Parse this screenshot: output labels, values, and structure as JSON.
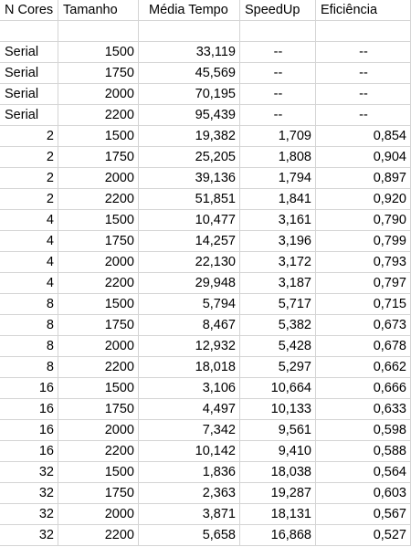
{
  "headers": [
    "N Cores",
    "Tamanho",
    "Média Tempo",
    "SpeedUp",
    "Eficiência"
  ],
  "rows": [
    [
      "Serial",
      "1500",
      "33,119",
      "--",
      "--"
    ],
    [
      "Serial",
      "1750",
      "45,569",
      "--",
      "--"
    ],
    [
      "Serial",
      "2000",
      "70,195",
      "--",
      "--"
    ],
    [
      "Serial",
      "2200",
      "95,439",
      "--",
      "--"
    ],
    [
      "2",
      "1500",
      "19,382",
      "1,709",
      "0,854"
    ],
    [
      "2",
      "1750",
      "25,205",
      "1,808",
      "0,904"
    ],
    [
      "2",
      "2000",
      "39,136",
      "1,794",
      "0,897"
    ],
    [
      "2",
      "2200",
      "51,851",
      "1,841",
      "0,920"
    ],
    [
      "4",
      "1500",
      "10,477",
      "3,161",
      "0,790"
    ],
    [
      "4",
      "1750",
      "14,257",
      "3,196",
      "0,799"
    ],
    [
      "4",
      "2000",
      "22,130",
      "3,172",
      "0,793"
    ],
    [
      "4",
      "2200",
      "29,948",
      "3,187",
      "0,797"
    ],
    [
      "8",
      "1500",
      "5,794",
      "5,717",
      "0,715"
    ],
    [
      "8",
      "1750",
      "8,467",
      "5,382",
      "0,673"
    ],
    [
      "8",
      "2000",
      "12,932",
      "5,428",
      "0,678"
    ],
    [
      "8",
      "2200",
      "18,018",
      "5,297",
      "0,662"
    ],
    [
      "16",
      "1500",
      "3,106",
      "10,664",
      "0,666"
    ],
    [
      "16",
      "1750",
      "4,497",
      "10,133",
      "0,633"
    ],
    [
      "16",
      "2000",
      "7,342",
      "9,561",
      "0,598"
    ],
    [
      "16",
      "2200",
      "10,142",
      "9,410",
      "0,588"
    ],
    [
      "32",
      "1500",
      "1,836",
      "18,038",
      "0,564"
    ],
    [
      "32",
      "1750",
      "2,363",
      "19,287",
      "0,603"
    ],
    [
      "32",
      "2000",
      "3,871",
      "18,131",
      "0,567"
    ],
    [
      "32",
      "2200",
      "5,658",
      "16,868",
      "0,527"
    ]
  ]
}
